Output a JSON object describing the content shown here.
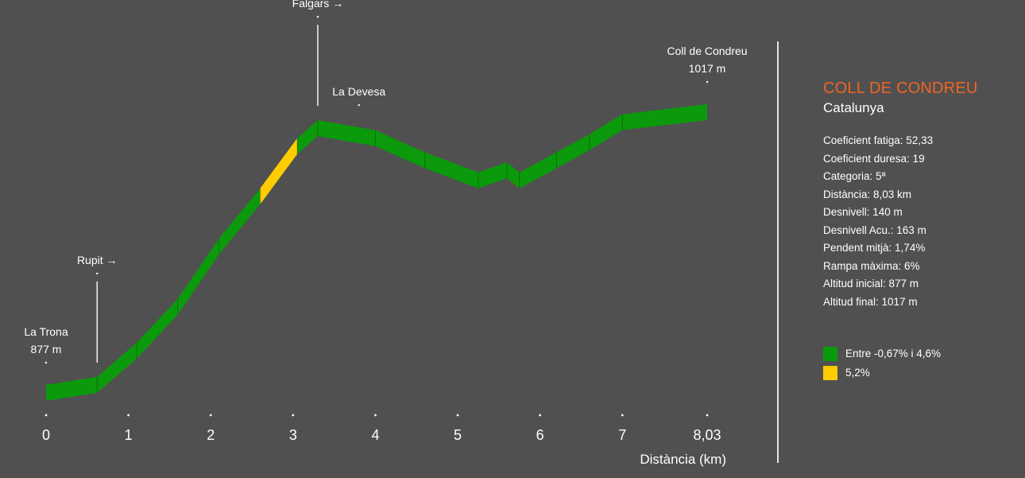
{
  "colors": {
    "background": "#505051",
    "green": "#0b9a0b",
    "green_dark": "#067606",
    "yellow": "#ffcc00",
    "title": "#f26522",
    "text": "#ffffff"
  },
  "side": {
    "title": "COLL DE CONDREU",
    "subtitle": "Catalunya",
    "stats": [
      "Coeficient fatiga: 52,33",
      "Coeficient duresa: 19",
      "Categoria: 5ª",
      "Distància: 8,03 km",
      "Desnivell: 140 m",
      "Desnivell Acu.: 163 m",
      "Pendent mitjà: 1,74%",
      "Rampa màxima: 6%",
      "Altitud inicial: 877 m",
      "Altitud final: 1017 m"
    ],
    "legend": [
      {
        "label": "Entre -0,67% i 4,6%",
        "color": "#0b9a0b"
      },
      {
        "label": "5,2%",
        "color": "#ffcc00"
      }
    ]
  },
  "chart_data": {
    "type": "area",
    "xlabel": "Distància (km)",
    "ylabel": "",
    "xlim": [
      0,
      8.03
    ],
    "ylim": [
      877,
      1017
    ],
    "x_ticks": [
      "0",
      "1",
      "2",
      "3",
      "4",
      "5",
      "6",
      "7",
      "8,03"
    ],
    "x_tick_values": [
      0,
      1,
      2,
      3,
      4,
      5,
      6,
      7,
      8.03
    ],
    "profile": [
      {
        "x": 0.0,
        "y": 877
      },
      {
        "x": 0.62,
        "y": 881
      },
      {
        "x": 1.1,
        "y": 898
      },
      {
        "x": 1.6,
        "y": 920
      },
      {
        "x": 2.1,
        "y": 950
      },
      {
        "x": 2.6,
        "y": 975
      },
      {
        "x": 3.05,
        "y": 1000
      },
      {
        "x": 3.3,
        "y": 1009
      },
      {
        "x": 4.0,
        "y": 1004
      },
      {
        "x": 4.6,
        "y": 993
      },
      {
        "x": 5.25,
        "y": 983
      },
      {
        "x": 5.6,
        "y": 988
      },
      {
        "x": 5.75,
        "y": 983
      },
      {
        "x": 6.2,
        "y": 993
      },
      {
        "x": 6.6,
        "y": 1002
      },
      {
        "x": 7.0,
        "y": 1012
      },
      {
        "x": 8.03,
        "y": 1017
      }
    ],
    "segments": [
      {
        "from": 0.0,
        "to": 2.6,
        "category": "green"
      },
      {
        "from": 2.6,
        "to": 3.05,
        "category": "yellow"
      },
      {
        "from": 3.05,
        "to": 8.03,
        "category": "green"
      }
    ],
    "annotations": [
      {
        "x": 0.0,
        "lines": [
          "La Trona",
          "877 m"
        ],
        "pointer": false,
        "arrow": false
      },
      {
        "x": 0.62,
        "lines": [
          "Rupit →"
        ],
        "pointer": true,
        "arrow": true
      },
      {
        "x": 3.3,
        "lines": [
          "Falgars →"
        ],
        "pointer": true,
        "arrow": true
      },
      {
        "x": 3.8,
        "lines": [
          "La Devesa"
        ],
        "pointer": false,
        "arrow": false
      },
      {
        "x": 8.03,
        "lines": [
          "Coll de Condreu",
          "1017 m"
        ],
        "pointer": false,
        "arrow": false
      }
    ]
  }
}
